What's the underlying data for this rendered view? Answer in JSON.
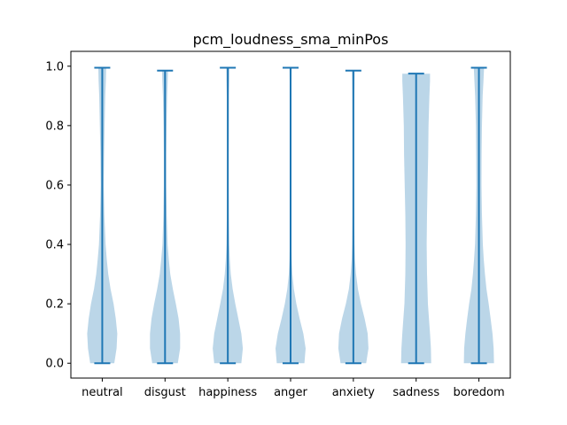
{
  "chart_data": {
    "type": "violin",
    "title": "pcm_loudness_sma_minPos",
    "xlabel": "",
    "ylabel": "",
    "categories": [
      "neutral",
      "disgust",
      "happiness",
      "anger",
      "anxiety",
      "sadness",
      "boredom"
    ],
    "ylim": [
      -0.05,
      1.05
    ],
    "yticks": [
      0.0,
      0.2,
      0.4,
      0.6,
      0.8,
      1.0
    ],
    "ytick_labels": [
      "0.0",
      "0.2",
      "0.4",
      "0.6",
      "0.8",
      "1.0"
    ],
    "grid": false,
    "violins": [
      {
        "category": "neutral",
        "min": 0.0,
        "max": 0.995,
        "density": [
          [
            0.0,
            0.8
          ],
          [
            0.05,
            0.95
          ],
          [
            0.1,
            1.0
          ],
          [
            0.15,
            0.9
          ],
          [
            0.2,
            0.75
          ],
          [
            0.25,
            0.55
          ],
          [
            0.3,
            0.4
          ],
          [
            0.35,
            0.3
          ],
          [
            0.4,
            0.22
          ],
          [
            0.5,
            0.14
          ],
          [
            0.6,
            0.1
          ],
          [
            0.7,
            0.12
          ],
          [
            0.8,
            0.16
          ],
          [
            0.9,
            0.2
          ],
          [
            0.95,
            0.24
          ],
          [
            0.995,
            0.26
          ]
        ]
      },
      {
        "category": "disgust",
        "min": 0.0,
        "max": 0.985,
        "density": [
          [
            0.0,
            0.85
          ],
          [
            0.05,
            1.0
          ],
          [
            0.1,
            1.0
          ],
          [
            0.15,
            0.9
          ],
          [
            0.2,
            0.72
          ],
          [
            0.25,
            0.52
          ],
          [
            0.3,
            0.35
          ],
          [
            0.35,
            0.25
          ],
          [
            0.4,
            0.17
          ],
          [
            0.5,
            0.11
          ],
          [
            0.6,
            0.08
          ],
          [
            0.7,
            0.08
          ],
          [
            0.8,
            0.1
          ],
          [
            0.9,
            0.14
          ],
          [
            0.95,
            0.18
          ],
          [
            0.985,
            0.2
          ]
        ]
      },
      {
        "category": "happiness",
        "min": 0.0,
        "max": 0.995,
        "density": [
          [
            0.0,
            0.9
          ],
          [
            0.05,
            1.0
          ],
          [
            0.1,
            0.9
          ],
          [
            0.15,
            0.7
          ],
          [
            0.2,
            0.5
          ],
          [
            0.25,
            0.32
          ],
          [
            0.3,
            0.2
          ],
          [
            0.35,
            0.13
          ],
          [
            0.4,
            0.09
          ],
          [
            0.5,
            0.06
          ],
          [
            0.6,
            0.05
          ],
          [
            0.7,
            0.05
          ],
          [
            0.8,
            0.06
          ],
          [
            0.9,
            0.07
          ],
          [
            0.95,
            0.09
          ],
          [
            0.995,
            0.1
          ]
        ]
      },
      {
        "category": "anger",
        "min": 0.0,
        "max": 0.995,
        "density": [
          [
            0.0,
            0.92
          ],
          [
            0.05,
            1.0
          ],
          [
            0.1,
            0.85
          ],
          [
            0.15,
            0.6
          ],
          [
            0.2,
            0.38
          ],
          [
            0.25,
            0.22
          ],
          [
            0.3,
            0.12
          ],
          [
            0.35,
            0.07
          ],
          [
            0.4,
            0.05
          ],
          [
            0.5,
            0.04
          ],
          [
            0.6,
            0.035
          ],
          [
            0.7,
            0.035
          ],
          [
            0.8,
            0.04
          ],
          [
            0.9,
            0.05
          ],
          [
            0.95,
            0.06
          ],
          [
            0.995,
            0.07
          ]
        ]
      },
      {
        "category": "anxiety",
        "min": 0.0,
        "max": 0.985,
        "density": [
          [
            0.0,
            0.85
          ],
          [
            0.05,
            1.0
          ],
          [
            0.1,
            0.95
          ],
          [
            0.15,
            0.75
          ],
          [
            0.2,
            0.5
          ],
          [
            0.25,
            0.3
          ],
          [
            0.3,
            0.18
          ],
          [
            0.35,
            0.11
          ],
          [
            0.4,
            0.08
          ],
          [
            0.5,
            0.055
          ],
          [
            0.6,
            0.05
          ],
          [
            0.7,
            0.05
          ],
          [
            0.8,
            0.055
          ],
          [
            0.9,
            0.07
          ],
          [
            0.95,
            0.08
          ],
          [
            0.985,
            0.09
          ]
        ]
      },
      {
        "category": "sadness",
        "min": 0.0,
        "max": 0.975,
        "density": [
          [
            0.0,
            1.0
          ],
          [
            0.05,
            0.98
          ],
          [
            0.1,
            0.92
          ],
          [
            0.15,
            0.85
          ],
          [
            0.2,
            0.78
          ],
          [
            0.3,
            0.72
          ],
          [
            0.4,
            0.7
          ],
          [
            0.5,
            0.72
          ],
          [
            0.6,
            0.76
          ],
          [
            0.7,
            0.8
          ],
          [
            0.8,
            0.82
          ],
          [
            0.9,
            0.88
          ],
          [
            0.95,
            0.92
          ],
          [
            0.975,
            0.92
          ]
        ]
      },
      {
        "category": "boredom",
        "min": 0.0,
        "max": 0.995,
        "density": [
          [
            0.0,
            1.0
          ],
          [
            0.05,
            0.98
          ],
          [
            0.1,
            0.9
          ],
          [
            0.15,
            0.78
          ],
          [
            0.2,
            0.65
          ],
          [
            0.25,
            0.5
          ],
          [
            0.3,
            0.4
          ],
          [
            0.35,
            0.32
          ],
          [
            0.4,
            0.26
          ],
          [
            0.5,
            0.2
          ],
          [
            0.6,
            0.17
          ],
          [
            0.7,
            0.18
          ],
          [
            0.8,
            0.2
          ],
          [
            0.9,
            0.25
          ],
          [
            0.95,
            0.3
          ],
          [
            0.995,
            0.34
          ]
        ]
      }
    ],
    "colors": {
      "body": "#1f77b4",
      "body_alpha": 0.3,
      "lines": "#1f77b4",
      "axis": "#000000"
    }
  }
}
